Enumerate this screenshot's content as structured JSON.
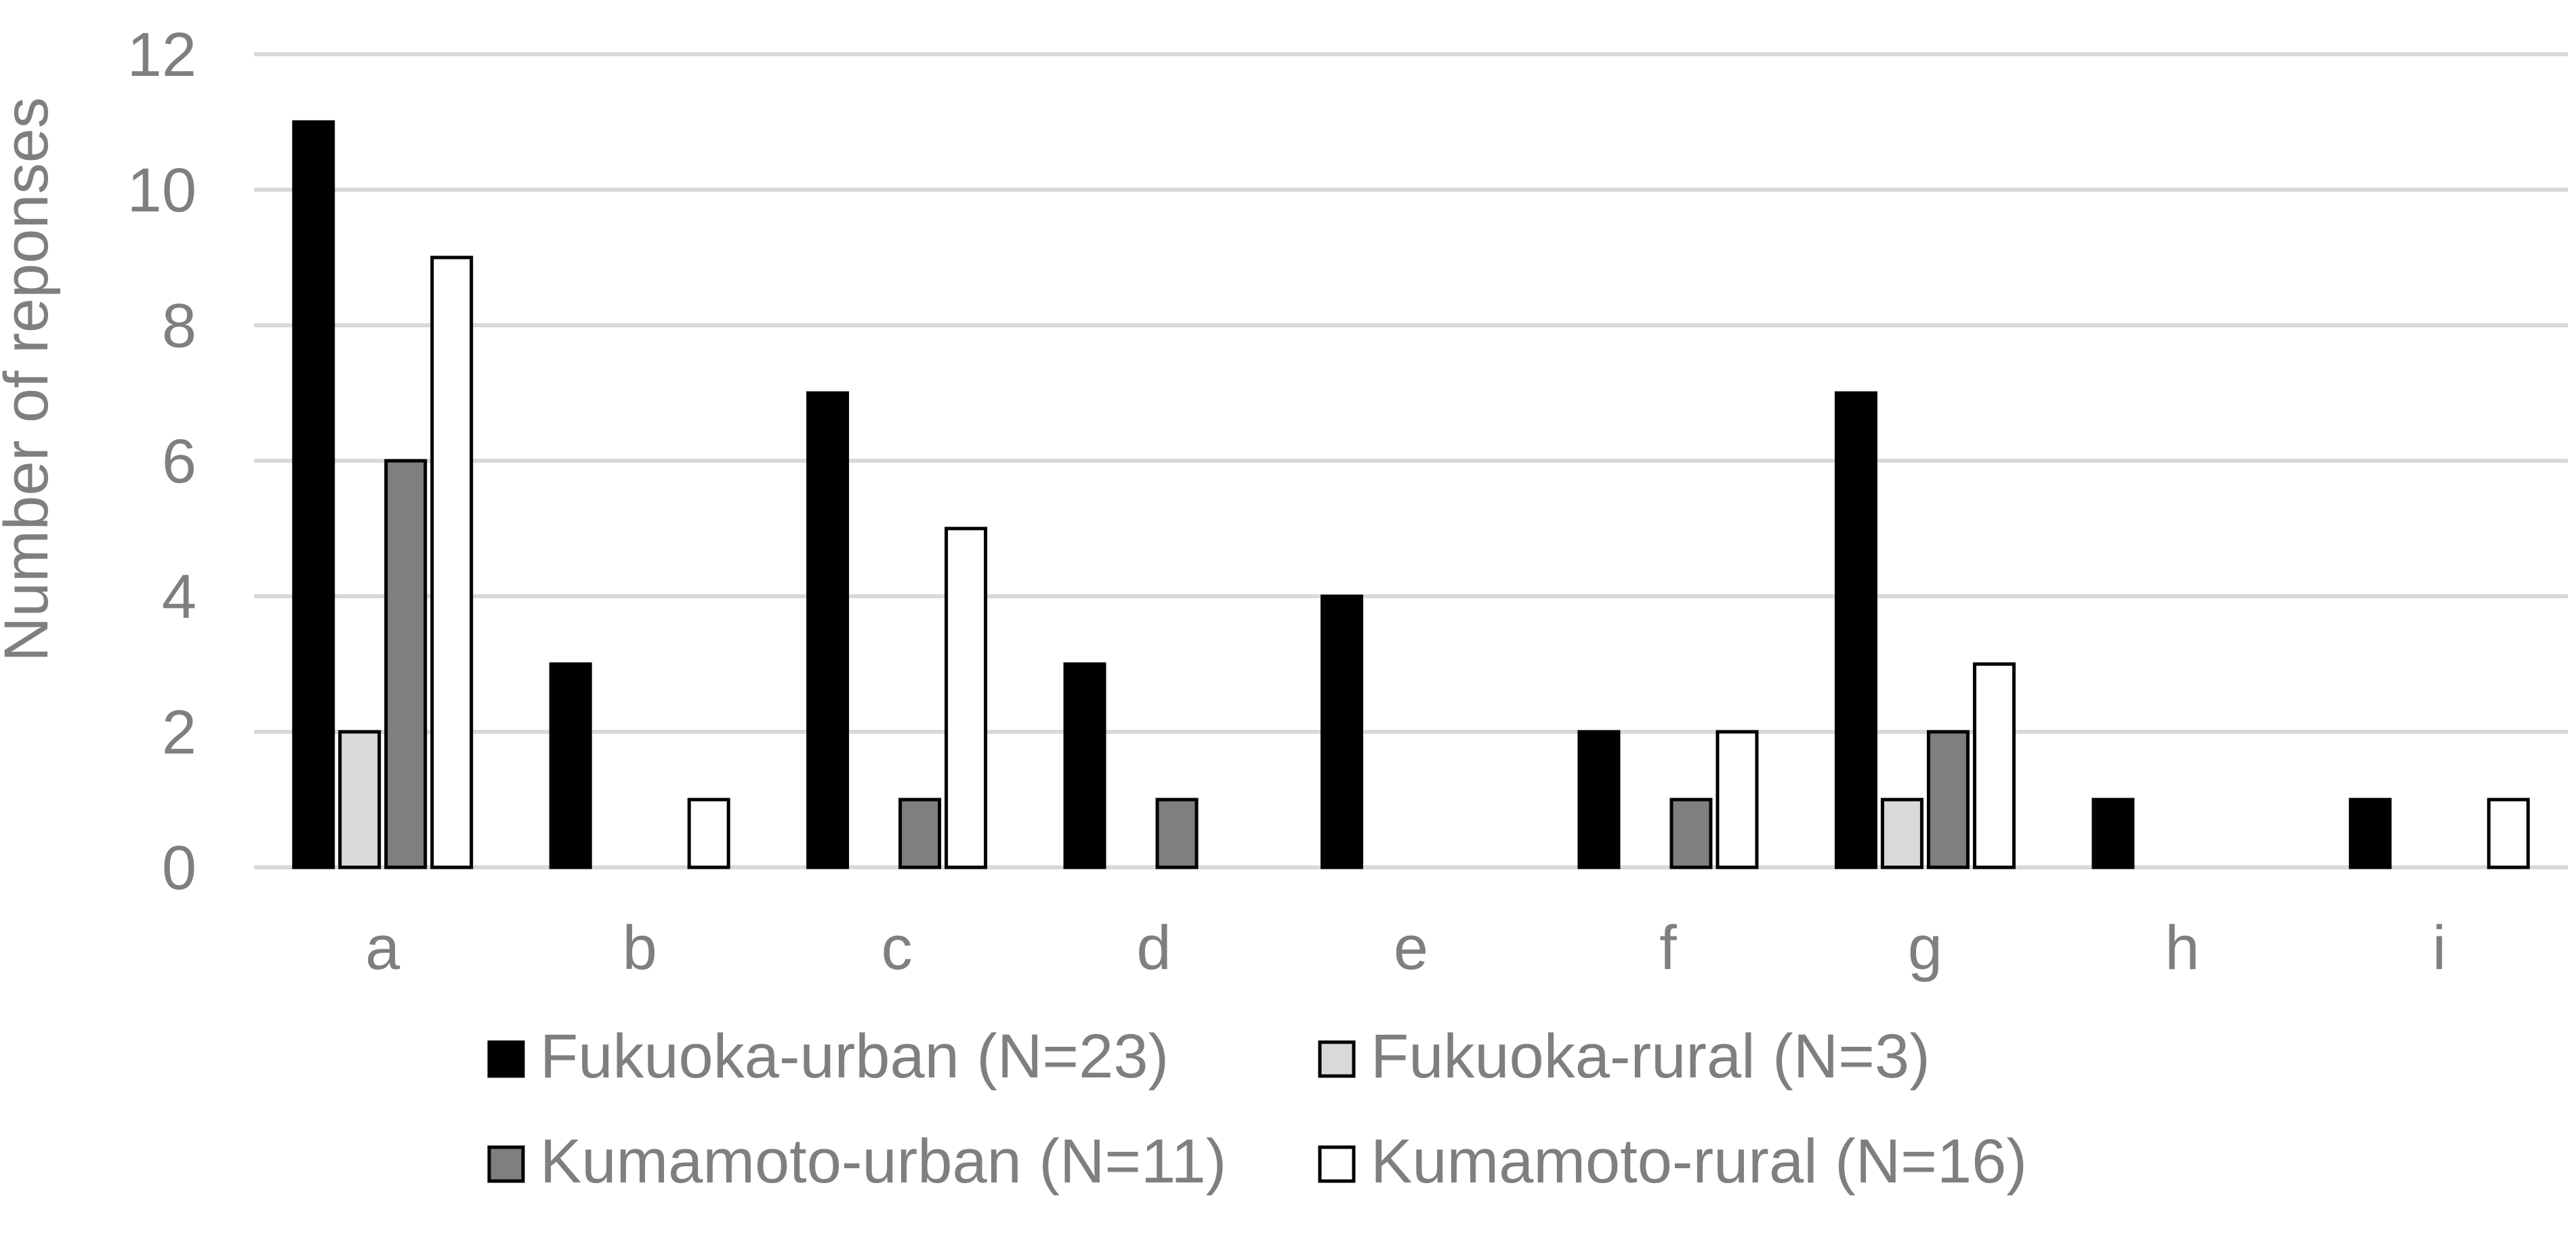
{
  "chart_data": {
    "type": "bar",
    "title": "",
    "xlabel": "",
    "ylabel": "Number of reponses",
    "ylim": [
      0,
      12
    ],
    "yticks": [
      0,
      2,
      4,
      6,
      8,
      10,
      12
    ],
    "grid": true,
    "legend_position": "bottom",
    "categories": [
      "a",
      "b",
      "c",
      "d",
      "e",
      "f",
      "g",
      "h",
      "i"
    ],
    "series": [
      {
        "name": "Fukuoka-urban (N=23)",
        "color": "#000000",
        "values": [
          11,
          3,
          7,
          3,
          4,
          2,
          7,
          1,
          1
        ]
      },
      {
        "name": "Fukuoka-rural (N=3)",
        "color": "#d9d9d9",
        "values": [
          2,
          0,
          0,
          0,
          0,
          0,
          1,
          0,
          0
        ]
      },
      {
        "name": "Kumamoto-urban (N=11)",
        "color": "#7f7f7f",
        "values": [
          6,
          0,
          1,
          1,
          0,
          1,
          2,
          0,
          0
        ]
      },
      {
        "name": "Kumamoto-rural (N=16)",
        "color": "#ffffff",
        "values": [
          9,
          1,
          5,
          0,
          0,
          2,
          3,
          0,
          1
        ]
      }
    ]
  }
}
